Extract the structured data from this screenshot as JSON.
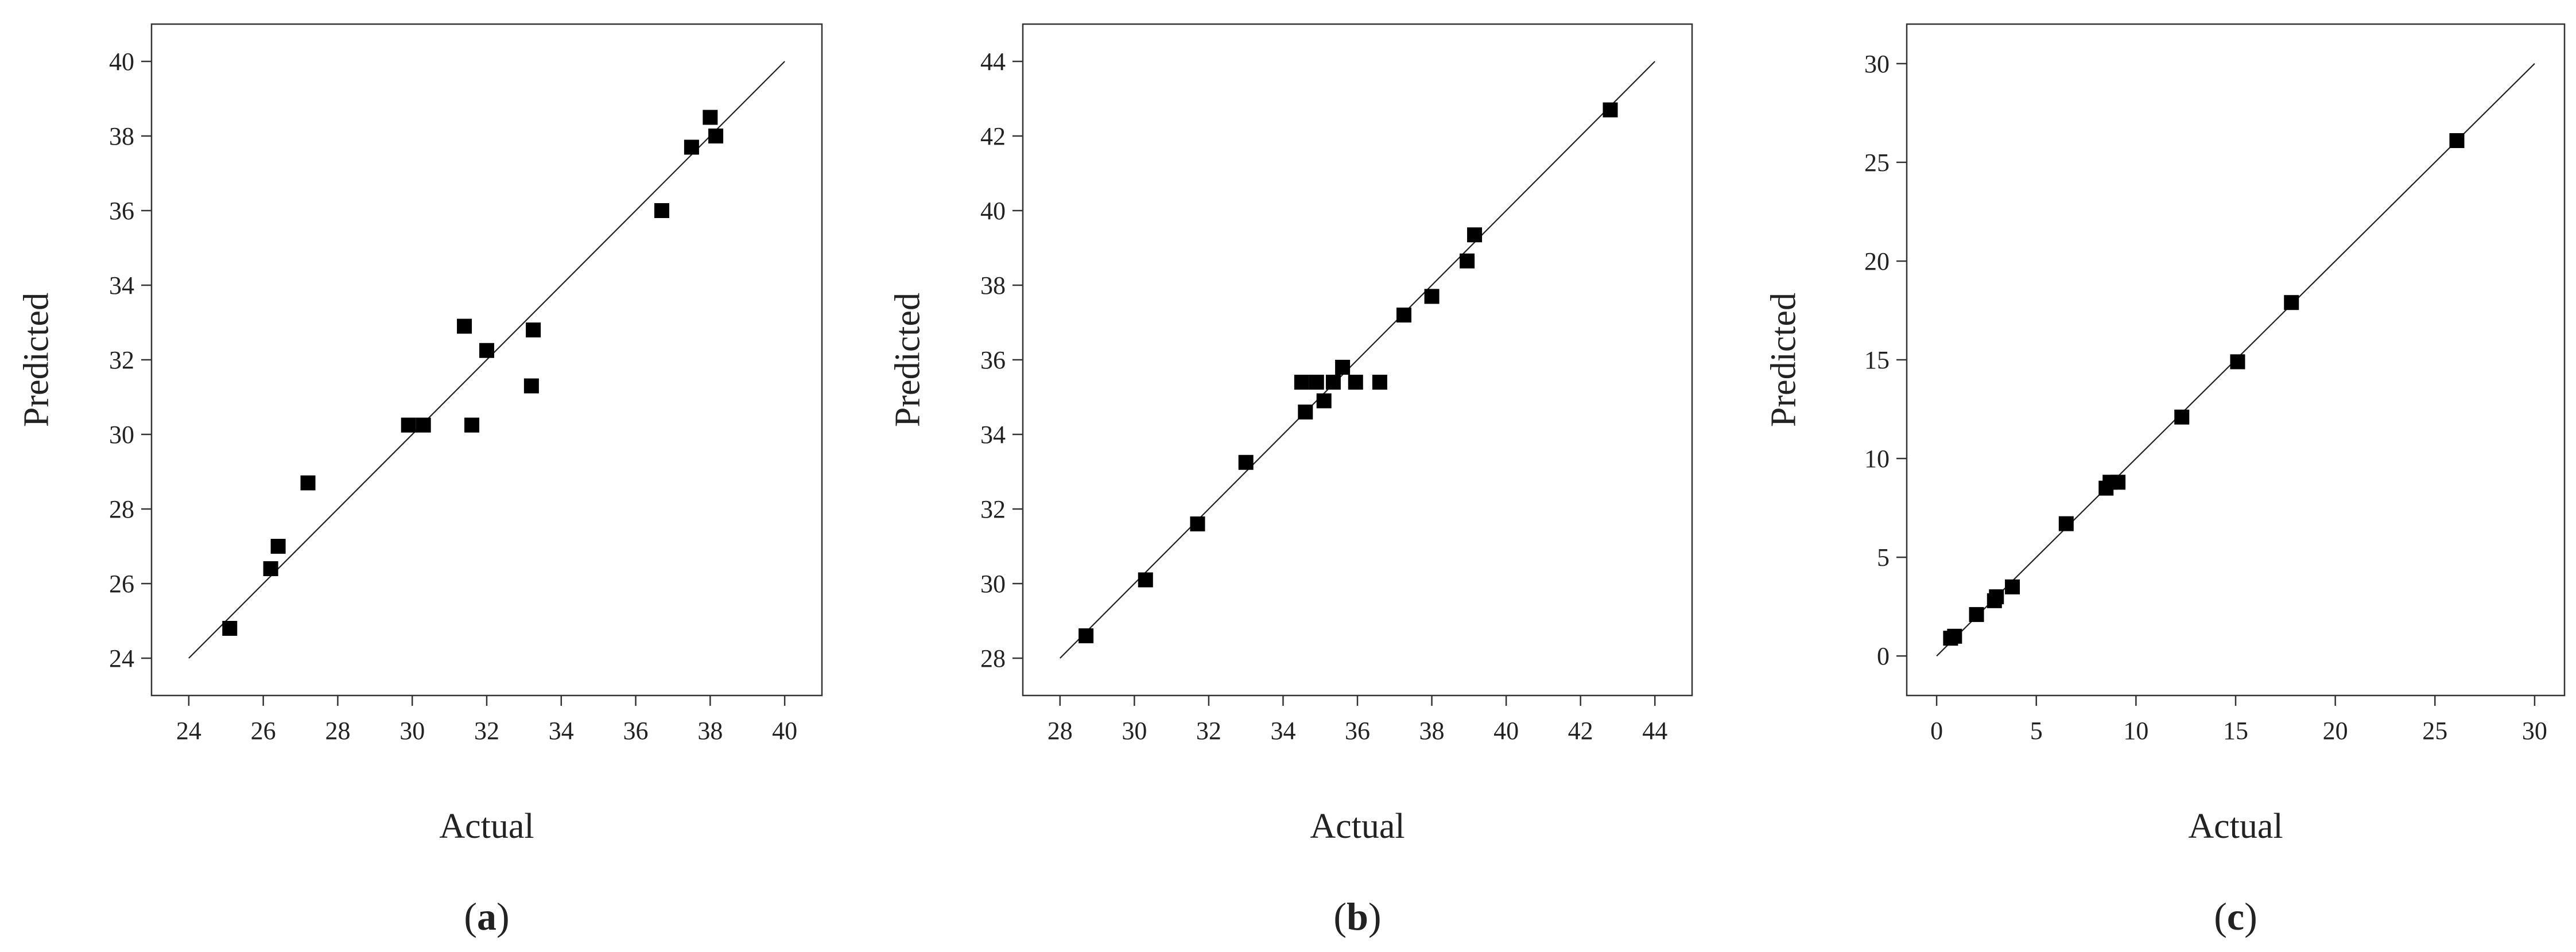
{
  "figure": {
    "panels": [
      "a",
      "b",
      "c"
    ]
  },
  "chart_data": [
    {
      "type": "scatter",
      "label": "a",
      "xlabel": "Actual",
      "ylabel": "Predicted",
      "xlim": [
        23,
        41
      ],
      "ylim": [
        23,
        41
      ],
      "xticks": [
        24,
        26,
        28,
        30,
        32,
        34,
        36,
        38,
        40
      ],
      "yticks": [
        24,
        26,
        28,
        30,
        32,
        34,
        36,
        38,
        40
      ],
      "reference_line": [
        [
          24,
          24
        ],
        [
          40,
          40
        ]
      ],
      "points": [
        [
          25.1,
          24.8
        ],
        [
          26.2,
          26.4
        ],
        [
          26.4,
          27.0
        ],
        [
          27.2,
          28.7
        ],
        [
          29.9,
          30.25
        ],
        [
          30.3,
          30.25
        ],
        [
          31.4,
          32.9
        ],
        [
          31.6,
          30.25
        ],
        [
          32.0,
          32.25
        ],
        [
          33.2,
          31.3
        ],
        [
          33.25,
          32.8
        ],
        [
          36.7,
          36.0
        ],
        [
          37.5,
          37.7
        ],
        [
          38.0,
          38.5
        ],
        [
          38.15,
          38.0
        ]
      ],
      "grid": false
    },
    {
      "type": "scatter",
      "label": "b",
      "xlabel": "Actual",
      "ylabel": "Predicted",
      "xlim": [
        27,
        45
      ],
      "ylim": [
        27,
        45
      ],
      "xticks": [
        28,
        30,
        32,
        34,
        36,
        38,
        40,
        42,
        44
      ],
      "yticks": [
        28,
        30,
        32,
        34,
        36,
        38,
        40,
        42,
        44
      ],
      "reference_line": [
        [
          28,
          28
        ],
        [
          44,
          44
        ]
      ],
      "points": [
        [
          28.7,
          28.6
        ],
        [
          30.3,
          30.1
        ],
        [
          31.7,
          31.6
        ],
        [
          33.0,
          33.25
        ],
        [
          34.5,
          35.4
        ],
        [
          34.6,
          34.6
        ],
        [
          34.9,
          35.4
        ],
        [
          35.1,
          34.9
        ],
        [
          35.35,
          35.4
        ],
        [
          35.6,
          35.8
        ],
        [
          35.95,
          35.4
        ],
        [
          36.6,
          35.4
        ],
        [
          37.25,
          37.2
        ],
        [
          38.0,
          37.7
        ],
        [
          38.95,
          38.65
        ],
        [
          39.15,
          39.35
        ],
        [
          42.8,
          42.7
        ]
      ],
      "grid": false
    },
    {
      "type": "scatter",
      "label": "c",
      "xlabel": "Actual",
      "ylabel": "Predicted",
      "xlim": [
        -1.5,
        31.5
      ],
      "ylim": [
        -2,
        32
      ],
      "xticks": [
        0,
        5,
        10,
        15,
        20,
        25,
        30
      ],
      "yticks": [
        0,
        5,
        10,
        15,
        20,
        25,
        30
      ],
      "reference_line": [
        [
          0,
          0
        ],
        [
          30,
          30
        ]
      ],
      "points": [
        [
          0.7,
          0.9
        ],
        [
          0.9,
          1.0
        ],
        [
          2.0,
          2.1
        ],
        [
          2.9,
          2.8
        ],
        [
          3.0,
          3.0
        ],
        [
          3.8,
          3.5
        ],
        [
          6.5,
          6.7
        ],
        [
          8.5,
          8.5
        ],
        [
          8.7,
          8.8
        ],
        [
          9.1,
          8.8
        ],
        [
          12.3,
          12.1
        ],
        [
          15.1,
          14.9
        ],
        [
          17.8,
          17.9
        ],
        [
          26.1,
          26.1
        ]
      ],
      "grid": false
    }
  ]
}
